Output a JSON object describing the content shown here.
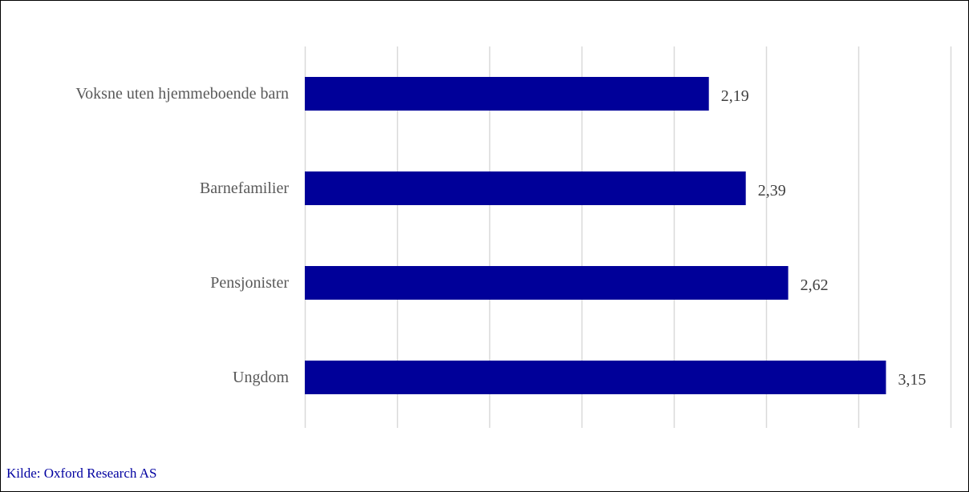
{
  "chart_data": {
    "type": "bar",
    "orientation": "horizontal",
    "categories": [
      "Voksne uten hjemmeboende barn",
      "Barnefamilier",
      "Pensjonister",
      "Ungdom"
    ],
    "values": [
      2.19,
      2.39,
      2.62,
      3.15
    ],
    "value_labels": [
      "2,19",
      "2,39",
      "2,62",
      "3,15"
    ],
    "xlim": [
      0,
      3.5
    ],
    "grid_step": 0.5,
    "grid": true,
    "legend": false,
    "title": "",
    "xlabel": "",
    "ylabel": "",
    "colors": {
      "bar": "#000099",
      "grid": "#d9d9d9"
    }
  },
  "source_text": "Kilde: Oxford Research AS"
}
